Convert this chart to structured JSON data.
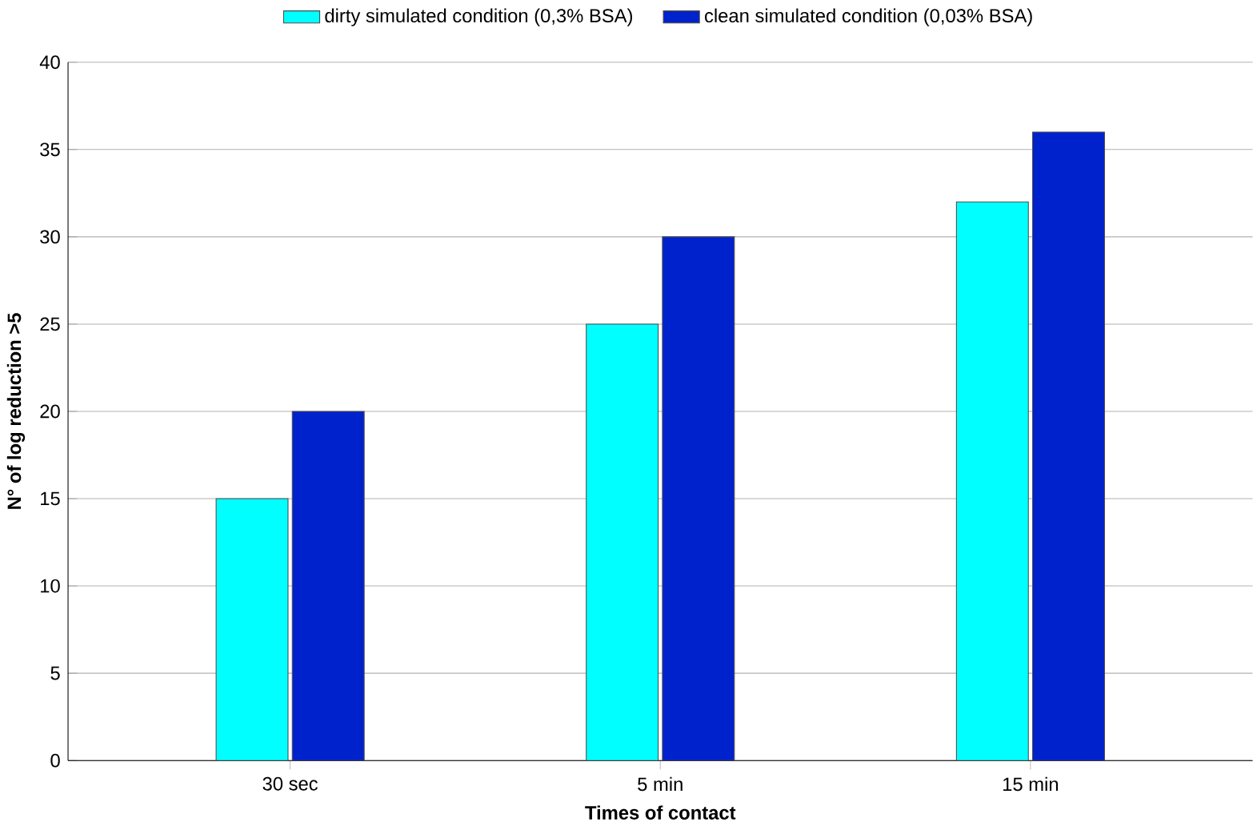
{
  "chart_data": {
    "type": "bar",
    "xlabel": "Times of contact",
    "ylabel": "N° of  log reduction >5",
    "categories": [
      "30 sec",
      "5 min",
      "15 min"
    ],
    "series": [
      {
        "name": "dirty simulated condition (0,3% BSA)",
        "color": "#00ffff",
        "values": [
          15,
          25,
          32
        ]
      },
      {
        "name": "clean simulated condition (0,03% BSA)",
        "color": "#0022cc",
        "values": [
          20,
          30,
          36
        ]
      }
    ],
    "ylim": [
      0,
      40
    ],
    "yticks": [
      0,
      5,
      10,
      15,
      20,
      25,
      30,
      35,
      40
    ],
    "grid": "y",
    "legend": "top"
  }
}
